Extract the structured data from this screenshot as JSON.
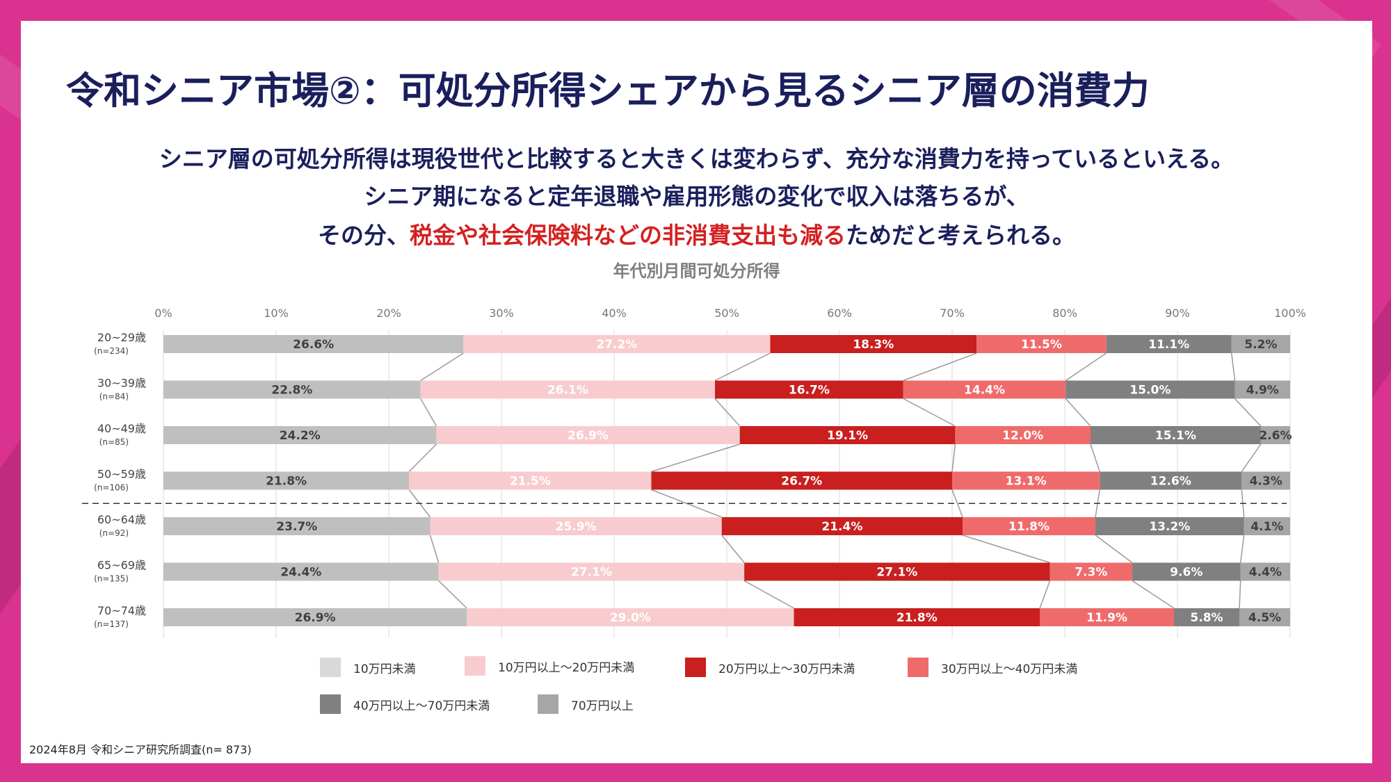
{
  "title": "令和シニア市場②：可処分所得シェアから見るシニア層の消費力",
  "subtitle": {
    "line1": "シニア層の可処分所得は現役世代と比較すると大きくは変わらず、充分な消費力を持っているといえる。",
    "line2": "シニア期になると定年退職や雇用形態の変化で収入は落ちるが、",
    "line3_prefix": "その分、",
    "line3_highlight": "税金や社会保険料などの非消費支出も減る",
    "line3_suffix": "ためだと考えられる。"
  },
  "source": "2024年8月 令和シニア研究所調査(n= 873)",
  "colors": {
    "navy": "#1a1f5c",
    "highlight": "#d42020",
    "background": "#d9338f"
  },
  "chart_data": {
    "type": "bar",
    "orientation": "horizontal-stacked-100",
    "title": "年代別月間可処分所得",
    "x_ticks": [
      "0%",
      "10%",
      "20%",
      "30%",
      "40%",
      "50%",
      "60%",
      "70%",
      "80%",
      "90%",
      "100%"
    ],
    "xlim": [
      0,
      100
    ],
    "grid": true,
    "legend_position": "bottom",
    "categories": [
      "20~29歳",
      "30~39歳",
      "40~49歳",
      "50~59歳",
      "60~64歳",
      "65~69歳",
      "70~74歳"
    ],
    "category_n": [
      "(n=234)",
      "(n=84)",
      "(n=85)",
      "(n=106)",
      "(n=92)",
      "(n=135)",
      "(n=137)"
    ],
    "divider_after_index": 3,
    "series": [
      {
        "name": "10万円未満",
        "color": "#bfbfbf",
        "legend_color": "#d9d9d9",
        "label_color": "#404040",
        "values": [
          26.6,
          22.8,
          24.2,
          21.8,
          23.7,
          24.4,
          26.9
        ],
        "labels": [
          "26.6%",
          "22.8%",
          "24.2%",
          "21.8%",
          "23.7%",
          "24.4%",
          "26.9%"
        ]
      },
      {
        "name": "10万円以上～20万円未満",
        "color": "#f8cccf",
        "legend_color": "#f8cccf",
        "label_color": "#ffffff",
        "values": [
          27.2,
          26.1,
          26.9,
          21.5,
          25.9,
          27.1,
          29.0
        ],
        "labels": [
          "27.2%",
          "26.1%",
          "26.9%",
          "21.5%",
          "25.9%",
          "27.1%",
          "29.0%"
        ]
      },
      {
        "name": "20万円以上～30万円未満",
        "color": "#c91f1f",
        "legend_color": "#c91f1f",
        "label_color": "#ffffff",
        "values": [
          18.3,
          16.7,
          19.1,
          26.7,
          21.4,
          27.1,
          21.8
        ],
        "labels": [
          "18.3%",
          "16.7%",
          "19.1%",
          "26.7%",
          "21.4%",
          "27.1%",
          "21.8%"
        ]
      },
      {
        "name": "30万円以上～40万円未満",
        "color": "#ef6b6b",
        "legend_color": "#ef6b6b",
        "label_color": "#ffffff",
        "values": [
          11.5,
          14.4,
          12.0,
          13.1,
          11.8,
          7.3,
          11.9
        ],
        "labels": [
          "11.5%",
          "14.4%",
          "12.0%",
          "13.1%",
          "11.8%",
          "7.3%",
          "11.9%"
        ]
      },
      {
        "name": "40万円以上～70万円未満",
        "color": "#808080",
        "legend_color": "#808080",
        "label_color": "#ffffff",
        "values": [
          11.1,
          15.0,
          15.1,
          12.6,
          13.2,
          9.6,
          5.8
        ],
        "labels": [
          "11.1%",
          "15.0%",
          "15.1%",
          "12.6%",
          "13.2%",
          "9.6%",
          "5.8%"
        ]
      },
      {
        "name": "70万円以上",
        "color": "#a6a6a6",
        "legend_color": "#a6a6a6",
        "label_color": "#404040",
        "values": [
          5.2,
          4.9,
          2.6,
          4.3,
          4.1,
          4.4,
          4.5
        ],
        "labels": [
          "5.2%",
          "4.9%",
          "2.6%",
          "4.3%",
          "4.1%",
          "4.4%",
          "4.5%"
        ]
      }
    ]
  }
}
